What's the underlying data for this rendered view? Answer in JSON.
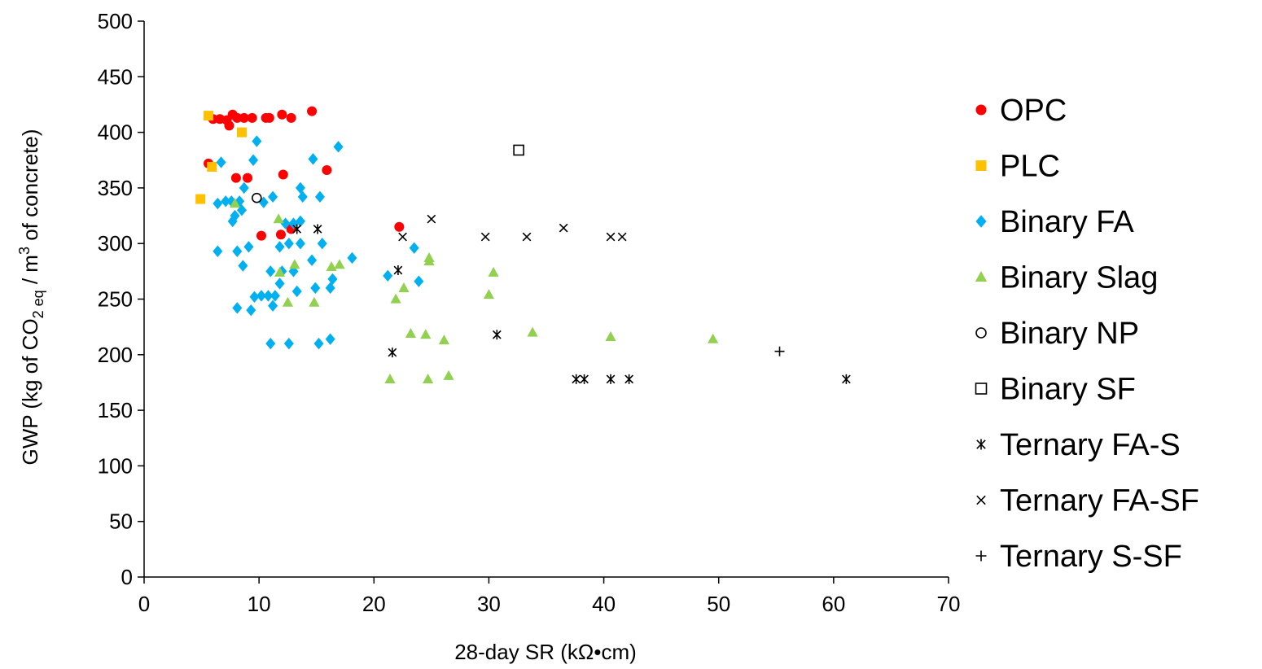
{
  "chart_data": {
    "type": "scatter",
    "xlabel": "28-day SR (kΩ•cm)",
    "ylabel_parts": [
      "GWP (kg of CO",
      "2 eq",
      " / m",
      "3",
      " of concrete)"
    ],
    "xlim": [
      0,
      70
    ],
    "ylim": [
      0,
      500
    ],
    "x_ticks": [
      0,
      10,
      20,
      30,
      40,
      50,
      60,
      70
    ],
    "y_ticks": [
      0,
      50,
      100,
      150,
      200,
      250,
      300,
      350,
      400,
      450,
      500
    ],
    "grid": false,
    "legend_position": "right",
    "series": [
      {
        "name": "OPC",
        "marker": "circle",
        "color": "#ff0000",
        "points": [
          [
            5.6,
            372
          ],
          [
            6.0,
            412
          ],
          [
            6.6,
            412
          ],
          [
            7.2,
            411
          ],
          [
            7.4,
            406
          ],
          [
            7.7,
            416
          ],
          [
            8.1,
            413
          ],
          [
            8.7,
            413
          ],
          [
            9.4,
            413
          ],
          [
            10.6,
            413
          ],
          [
            10.9,
            413
          ],
          [
            12.0,
            416
          ],
          [
            12.8,
            413
          ],
          [
            14.6,
            419
          ],
          [
            8.0,
            359
          ],
          [
            9.0,
            359
          ],
          [
            12.1,
            362
          ],
          [
            15.9,
            366
          ],
          [
            10.2,
            307
          ],
          [
            11.9,
            308
          ],
          [
            12.8,
            313
          ],
          [
            22.2,
            315
          ]
        ]
      },
      {
        "name": "PLC",
        "marker": "square",
        "color": "#ffc000",
        "points": [
          [
            5.6,
            415
          ],
          [
            8.5,
            400
          ],
          [
            5.9,
            369
          ],
          [
            4.9,
            340
          ]
        ]
      },
      {
        "name": "Binary FA",
        "marker": "diamond",
        "color": "#00b0f0",
        "points": [
          [
            9.8,
            392
          ],
          [
            16.9,
            387
          ],
          [
            6.7,
            373
          ],
          [
            9.5,
            375
          ],
          [
            14.7,
            376
          ],
          [
            13.6,
            350
          ],
          [
            8.7,
            350
          ],
          [
            6.4,
            336
          ],
          [
            7.1,
            338
          ],
          [
            7.6,
            338
          ],
          [
            8.3,
            338
          ],
          [
            10.4,
            337
          ],
          [
            11.2,
            342
          ],
          [
            13.8,
            342
          ],
          [
            15.3,
            342
          ],
          [
            8.5,
            330
          ],
          [
            7.9,
            325
          ],
          [
            7.7,
            320
          ],
          [
            12.3,
            318
          ],
          [
            13.0,
            318
          ],
          [
            13.6,
            320
          ],
          [
            6.4,
            293
          ],
          [
            8.1,
            293
          ],
          [
            9.1,
            297
          ],
          [
            11.8,
            297
          ],
          [
            12.6,
            300
          ],
          [
            13.6,
            300
          ],
          [
            15.5,
            300
          ],
          [
            8.6,
            280
          ],
          [
            11.0,
            275
          ],
          [
            12.0,
            275
          ],
          [
            13.0,
            275
          ],
          [
            14.6,
            285
          ],
          [
            16.4,
            268
          ],
          [
            18.1,
            287
          ],
          [
            9.6,
            252
          ],
          [
            10.2,
            253
          ],
          [
            10.8,
            253
          ],
          [
            11.4,
            253
          ],
          [
            11.2,
            244
          ],
          [
            11.8,
            264
          ],
          [
            13.3,
            257
          ],
          [
            14.9,
            260
          ],
          [
            16.2,
            260
          ],
          [
            8.1,
            242
          ],
          [
            9.3,
            240
          ],
          [
            11.0,
            210
          ],
          [
            12.6,
            210
          ],
          [
            15.2,
            210
          ],
          [
            16.2,
            214
          ],
          [
            21.2,
            271
          ],
          [
            23.5,
            296
          ],
          [
            23.9,
            266
          ]
        ]
      },
      {
        "name": "Binary Slag",
        "marker": "triangle",
        "color": "#92d050",
        "points": [
          [
            7.9,
            336
          ],
          [
            11.7,
            322
          ],
          [
            11.8,
            274
          ],
          [
            13.1,
            281
          ],
          [
            16.3,
            279
          ],
          [
            17.0,
            281
          ],
          [
            12.5,
            247
          ],
          [
            14.8,
            247
          ],
          [
            21.9,
            250
          ],
          [
            22.6,
            260
          ],
          [
            24.8,
            284
          ],
          [
            24.8,
            287
          ],
          [
            30.4,
            274
          ],
          [
            30.0,
            254
          ],
          [
            23.2,
            219
          ],
          [
            24.5,
            218
          ],
          [
            26.1,
            213
          ],
          [
            33.8,
            220
          ],
          [
            40.6,
            216
          ],
          [
            49.5,
            214
          ],
          [
            21.4,
            178
          ],
          [
            24.7,
            178
          ],
          [
            26.5,
            181
          ]
        ]
      },
      {
        "name": "Binary NP",
        "marker": "open-circle",
        "color": "#000000",
        "points": [
          [
            9.8,
            341
          ]
        ]
      },
      {
        "name": "Binary SF",
        "marker": "open-square",
        "color": "#000000",
        "points": [
          [
            32.6,
            384
          ]
        ]
      },
      {
        "name": "Ternary FA-S",
        "marker": "asterisk",
        "color": "#000000",
        "points": [
          [
            13.3,
            313
          ],
          [
            15.1,
            313
          ],
          [
            22.1,
            276
          ],
          [
            21.6,
            202
          ],
          [
            30.7,
            218
          ],
          [
            37.6,
            178
          ],
          [
            38.3,
            178
          ],
          [
            40.6,
            178
          ],
          [
            42.2,
            178
          ],
          [
            61.1,
            178
          ]
        ]
      },
      {
        "name": "Ternary FA-SF",
        "marker": "x",
        "color": "#000000",
        "points": [
          [
            22.5,
            306
          ],
          [
            25.0,
            322
          ],
          [
            29.7,
            306
          ],
          [
            33.3,
            306
          ],
          [
            36.5,
            314
          ],
          [
            40.6,
            306
          ],
          [
            41.6,
            306
          ]
        ]
      },
      {
        "name": "Ternary S-SF",
        "marker": "plus",
        "color": "#000000",
        "points": [
          [
            55.3,
            203
          ]
        ]
      }
    ]
  }
}
